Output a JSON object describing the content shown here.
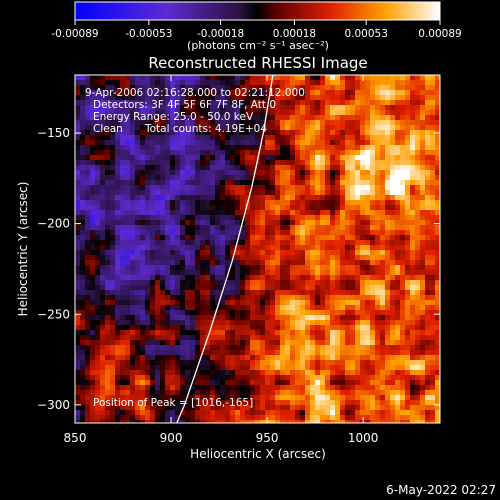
{
  "chart_data": {
    "type": "heatmap",
    "title": "Reconstructed RHESSI Image",
    "xlabel": "Heliocentric X (arcsec)",
    "ylabel": "Heliocentric Y (arcsec)",
    "xlim": [
      850,
      1040
    ],
    "ylim": [
      -310,
      -118
    ],
    "x_ticks": [
      850,
      900,
      950,
      1000
    ],
    "y_ticks": [
      -150,
      -200,
      -250,
      -300
    ],
    "colorbar": {
      "range": [
        -0.00089,
        0.00089
      ],
      "tick_values": [
        -0.00089,
        -0.00053,
        -0.00018,
        0.00018,
        0.00053,
        0.00089
      ],
      "tick_labels": [
        "-0.00089",
        "-0.00053",
        "-0.00018",
        "0.00018",
        "0.00053",
        "0.00089"
      ],
      "unit_label": "(photons cm⁻² s⁻¹ asec⁻²)"
    },
    "annotations": {
      "time_range": "9-Apr-2006 02:16:28.000 to 02:21:12.000",
      "detectors": "Detectors: 3F 4F 5F 6F 7F 8F, Att 0",
      "energy_range": "Energy Range: 25.0 - 50.0 keV",
      "method": "Clean",
      "total_counts": "Total counts: 4.19E+04",
      "peak": "Position of Peak = [1016,-165]"
    },
    "peak": {
      "x": 1016,
      "y": -165
    },
    "limb_curve": [
      [
        895,
        -330
      ],
      [
        907,
        -300
      ],
      [
        920,
        -260
      ],
      [
        932,
        -220
      ],
      [
        942,
        -180
      ],
      [
        948,
        -150
      ],
      [
        953,
        -118
      ]
    ],
    "colors": {
      "background": "#000000",
      "foreground": "#ffffff",
      "limb": "#ffffff"
    }
  },
  "footer": {
    "date": "6-May-2022 02:27"
  }
}
